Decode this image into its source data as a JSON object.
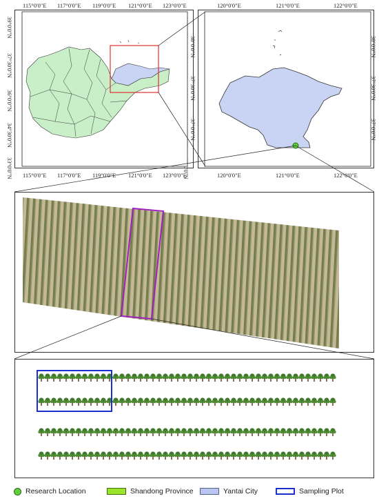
{
  "map1": {
    "lon_top": [
      "115°0'0\"E",
      "117°0'0\"E",
      "119°0'0\"E",
      "121°0'0\"E",
      "123°0'0\"E"
    ],
    "lon_bottom": [
      "115°0'0\"E",
      "117°0'0\"E",
      "119°0'0\"E",
      "121°0'0\"E",
      "123°0'0\"E"
    ],
    "lat_left": [
      "39°0'0\"N",
      "37°30'0\"N",
      "36°0'0\"N",
      "34°30'0\"N",
      "33°0'0\"N"
    ],
    "lat_right": [
      "39°0'0\"N",
      "37°30'0\"N",
      "36°0'0\"N",
      "34°30'0\"N",
      "33°0'0\"N"
    ]
  },
  "map2": {
    "lon_top": [
      "120°0'0\"E",
      "121°0'0\"E",
      "122°0'0\"E"
    ],
    "lon_bottom": [
      "120°0'0\"E",
      "121°0'0\"E",
      "122°0'0\"E"
    ],
    "lat_right": [
      "38°0'0\"N",
      "37°30'0\"N",
      "37°0'0\"N"
    ],
    "lat_left": [
      "38°0'0\"N",
      "37°30'0\"N",
      "37°0'0\"N"
    ]
  },
  "colors": {
    "shandong": "#c8efc8",
    "yantai": "#c9d3f3",
    "research": "#5fcf3a",
    "inset_box": "#e03030",
    "drone_box": "#a020c0",
    "sampling": "#1a2fd0"
  },
  "legend": {
    "research_location": "Research Location",
    "shandong_province": "Shandong Province",
    "yantai_city": "Yantai City",
    "sampling_plot": "Sampling Plot"
  }
}
